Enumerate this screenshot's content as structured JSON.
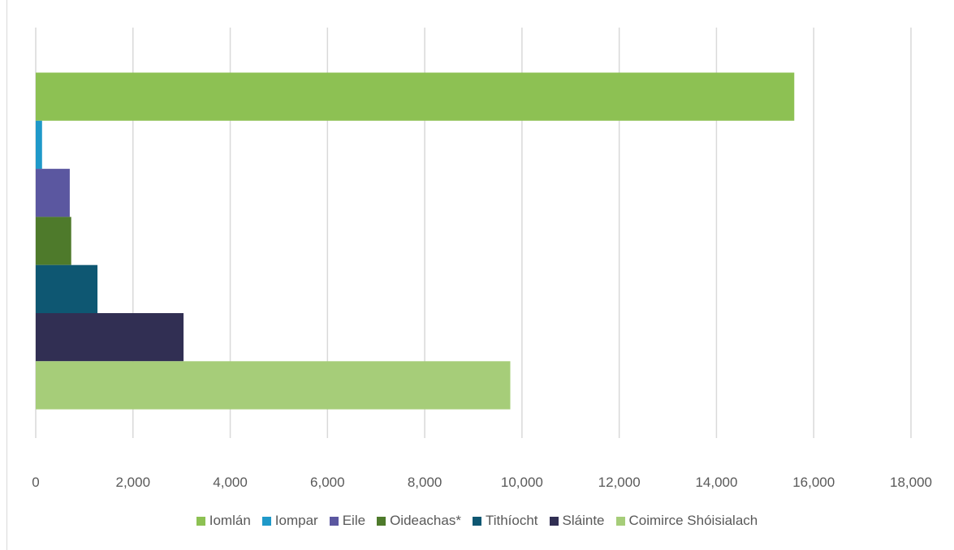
{
  "chart_data": {
    "type": "bar",
    "orientation": "horizontal",
    "title": "",
    "xlabel": "",
    "ylabel": "",
    "xlim": [
      0,
      18000
    ],
    "x_ticks": [
      "0",
      "2,000",
      "4,000",
      "6,000",
      "8,000",
      "10,000",
      "12,000",
      "14,000",
      "16,000",
      "18,000"
    ],
    "grid": "vertical",
    "legend_position": "bottom",
    "series": [
      {
        "name": "Iomlán",
        "value": 15600,
        "color": "#8dc153"
      },
      {
        "name": "Iompar",
        "value": 130,
        "color": "#1f99c9"
      },
      {
        "name": "Eile",
        "value": 700,
        "color": "#5b57a0"
      },
      {
        "name": "Oideachas*",
        "value": 730,
        "color": "#4e7a2b"
      },
      {
        "name": "Tithíocht",
        "value": 1270,
        "color": "#0e5772"
      },
      {
        "name": "Sláinte",
        "value": 3040,
        "color": "#312f53"
      },
      {
        "name": "Coimirce Shóisialach",
        "value": 9760,
        "color": "#a6cd79"
      }
    ]
  }
}
